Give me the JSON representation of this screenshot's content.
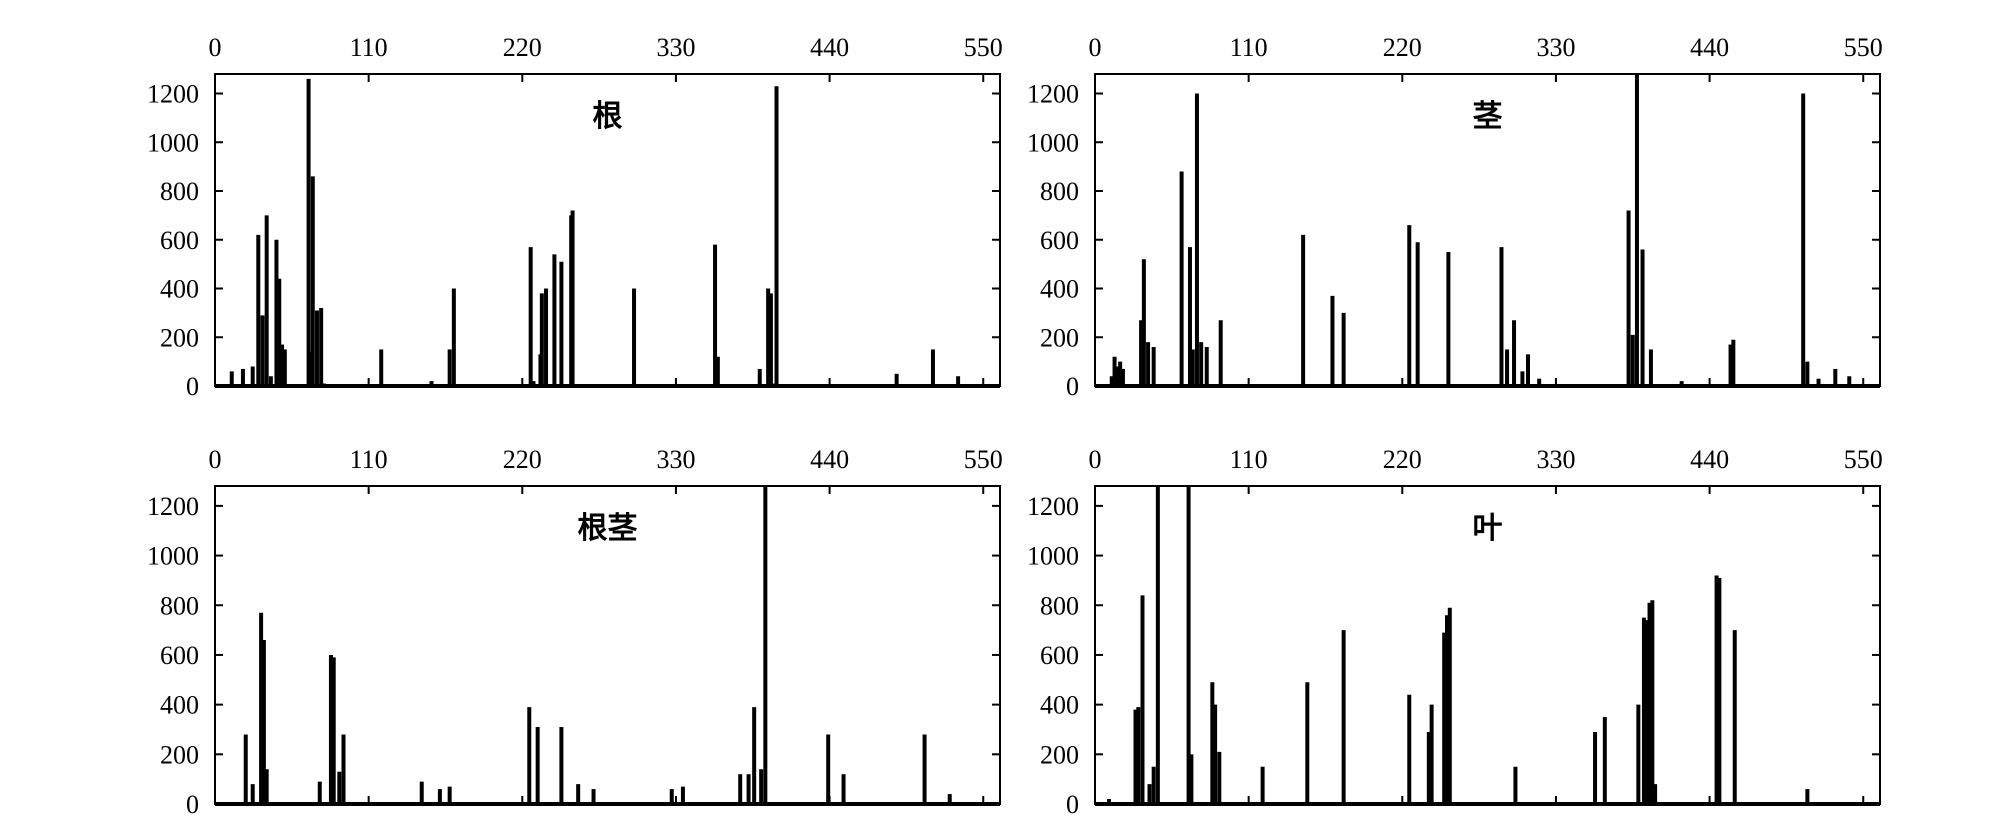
{
  "chart_data": [
    {
      "type": "bar",
      "title": "根",
      "xlabel": "",
      "ylabel": "",
      "xlim": [
        0,
        562
      ],
      "ylim": [
        0,
        1280
      ],
      "xticks": [
        0,
        110,
        220,
        330,
        440,
        550
      ],
      "yticks": [
        0,
        200,
        400,
        600,
        800,
        1000,
        1200
      ],
      "x_axis_position": "top",
      "grid": false,
      "x": [
        12,
        20,
        27,
        31,
        34,
        37,
        40,
        44,
        46,
        48,
        50,
        67,
        68,
        70,
        73,
        76,
        78,
        119,
        155,
        168,
        171,
        226,
        228,
        233,
        234,
        237,
        243,
        248,
        255,
        256,
        300,
        358,
        360,
        390,
        396,
        398,
        400,
        402,
        488,
        514,
        532
      ],
      "values": [
        60,
        70,
        80,
        620,
        290,
        700,
        40,
        600,
        440,
        170,
        150,
        1260,
        140,
        860,
        310,
        320,
        10,
        150,
        20,
        150,
        400,
        570,
        20,
        130,
        380,
        400,
        540,
        510,
        700,
        720,
        400,
        580,
        120,
        70,
        400,
        380,
        10,
        1230,
        50,
        150,
        40
      ]
    },
    {
      "type": "bar",
      "title": "茎",
      "xlabel": "",
      "ylabel": "",
      "xlim": [
        0,
        562
      ],
      "ylim": [
        0,
        1280
      ],
      "xticks": [
        0,
        110,
        220,
        330,
        440,
        550
      ],
      "yticks": [
        0,
        200,
        400,
        600,
        800,
        1000,
        1200
      ],
      "x_axis_position": "top",
      "grid": false,
      "x": [
        12,
        14,
        16,
        18,
        20,
        33,
        35,
        38,
        42,
        62,
        68,
        70,
        73,
        76,
        80,
        90,
        149,
        170,
        178,
        225,
        231,
        253,
        291,
        295,
        300,
        306,
        310,
        318,
        382,
        385,
        388,
        392,
        398,
        420,
        455,
        457,
        507,
        510,
        518,
        530,
        540
      ],
      "values": [
        40,
        120,
        80,
        100,
        70,
        270,
        520,
        180,
        160,
        880,
        570,
        150,
        1200,
        180,
        160,
        270,
        620,
        370,
        300,
        660,
        590,
        550,
        570,
        150,
        270,
        60,
        130,
        30,
        720,
        210,
        1280,
        560,
        150,
        20,
        170,
        190,
        1200,
        100,
        30,
        70,
        40
      ]
    },
    {
      "type": "bar",
      "title": "根茎",
      "xlabel": "",
      "ylabel": "",
      "xlim": [
        0,
        562
      ],
      "ylim": [
        0,
        1280
      ],
      "xticks": [
        0,
        110,
        220,
        330,
        440,
        550
      ],
      "yticks": [
        0,
        200,
        400,
        600,
        800,
        1000,
        1200
      ],
      "x_axis_position": "top",
      "grid": false,
      "x": [
        22,
        27,
        33,
        35,
        37,
        75,
        83,
        85,
        89,
        92,
        148,
        161,
        168,
        225,
        231,
        248,
        260,
        271,
        327,
        335,
        376,
        382,
        386,
        391,
        394,
        439,
        450,
        508,
        526
      ],
      "values": [
        280,
        80,
        770,
        660,
        140,
        90,
        600,
        590,
        130,
        280,
        90,
        60,
        70,
        390,
        310,
        310,
        80,
        60,
        60,
        70,
        120,
        120,
        390,
        140,
        1280,
        280,
        120,
        280,
        40
      ]
    },
    {
      "type": "bar",
      "title": "叶",
      "xlabel": "",
      "ylabel": "",
      "xlim": [
        0,
        562
      ],
      "ylim": [
        0,
        1280
      ],
      "xticks": [
        0,
        110,
        220,
        330,
        440,
        550
      ],
      "yticks": [
        0,
        200,
        400,
        600,
        800,
        1000,
        1200
      ],
      "x_axis_position": "top",
      "grid": false,
      "x": [
        10,
        29,
        31,
        34,
        39,
        42,
        45,
        67,
        69,
        84,
        86,
        89,
        120,
        152,
        178,
        225,
        239,
        241,
        250,
        252,
        254,
        301,
        358,
        365,
        389,
        393,
        395,
        397,
        399,
        401,
        445,
        447,
        458,
        510
      ],
      "values": [
        20,
        380,
        390,
        840,
        80,
        150,
        1280,
        1280,
        200,
        490,
        400,
        210,
        150,
        490,
        700,
        440,
        290,
        400,
        690,
        760,
        790,
        150,
        290,
        350,
        400,
        750,
        740,
        810,
        820,
        80,
        920,
        910,
        700,
        60
      ]
    }
  ]
}
